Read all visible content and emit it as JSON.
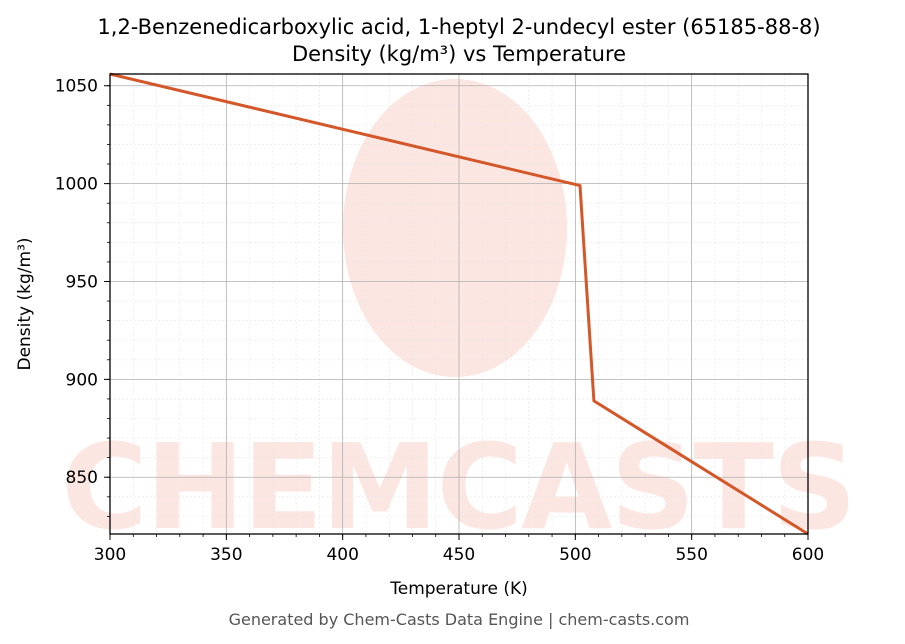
{
  "chart_data": {
    "type": "line",
    "title": "1,2-Benzenedicarboxylic acid, 1-heptyl 2-undecyl ester (65185-88-8)",
    "subtitle": "Density (kg/m³) vs Temperature",
    "xlabel": "Temperature (K)",
    "ylabel": "Density (kg/m³)",
    "xlim": [
      300,
      600
    ],
    "ylim": [
      821,
      1056
    ],
    "xticks": [
      300,
      350,
      400,
      450,
      500,
      550,
      600
    ],
    "yticks": [
      850,
      900,
      950,
      1000,
      1050
    ],
    "grid": true,
    "series": [
      {
        "color": "#d4572a",
        "x": [
          300,
          502,
          508,
          600
        ],
        "y": [
          1056,
          999,
          889,
          821
        ]
      }
    ]
  },
  "footer": "Generated by Chem-Casts Data Engine | chem-casts.com",
  "watermark": "CHEMCASTS"
}
